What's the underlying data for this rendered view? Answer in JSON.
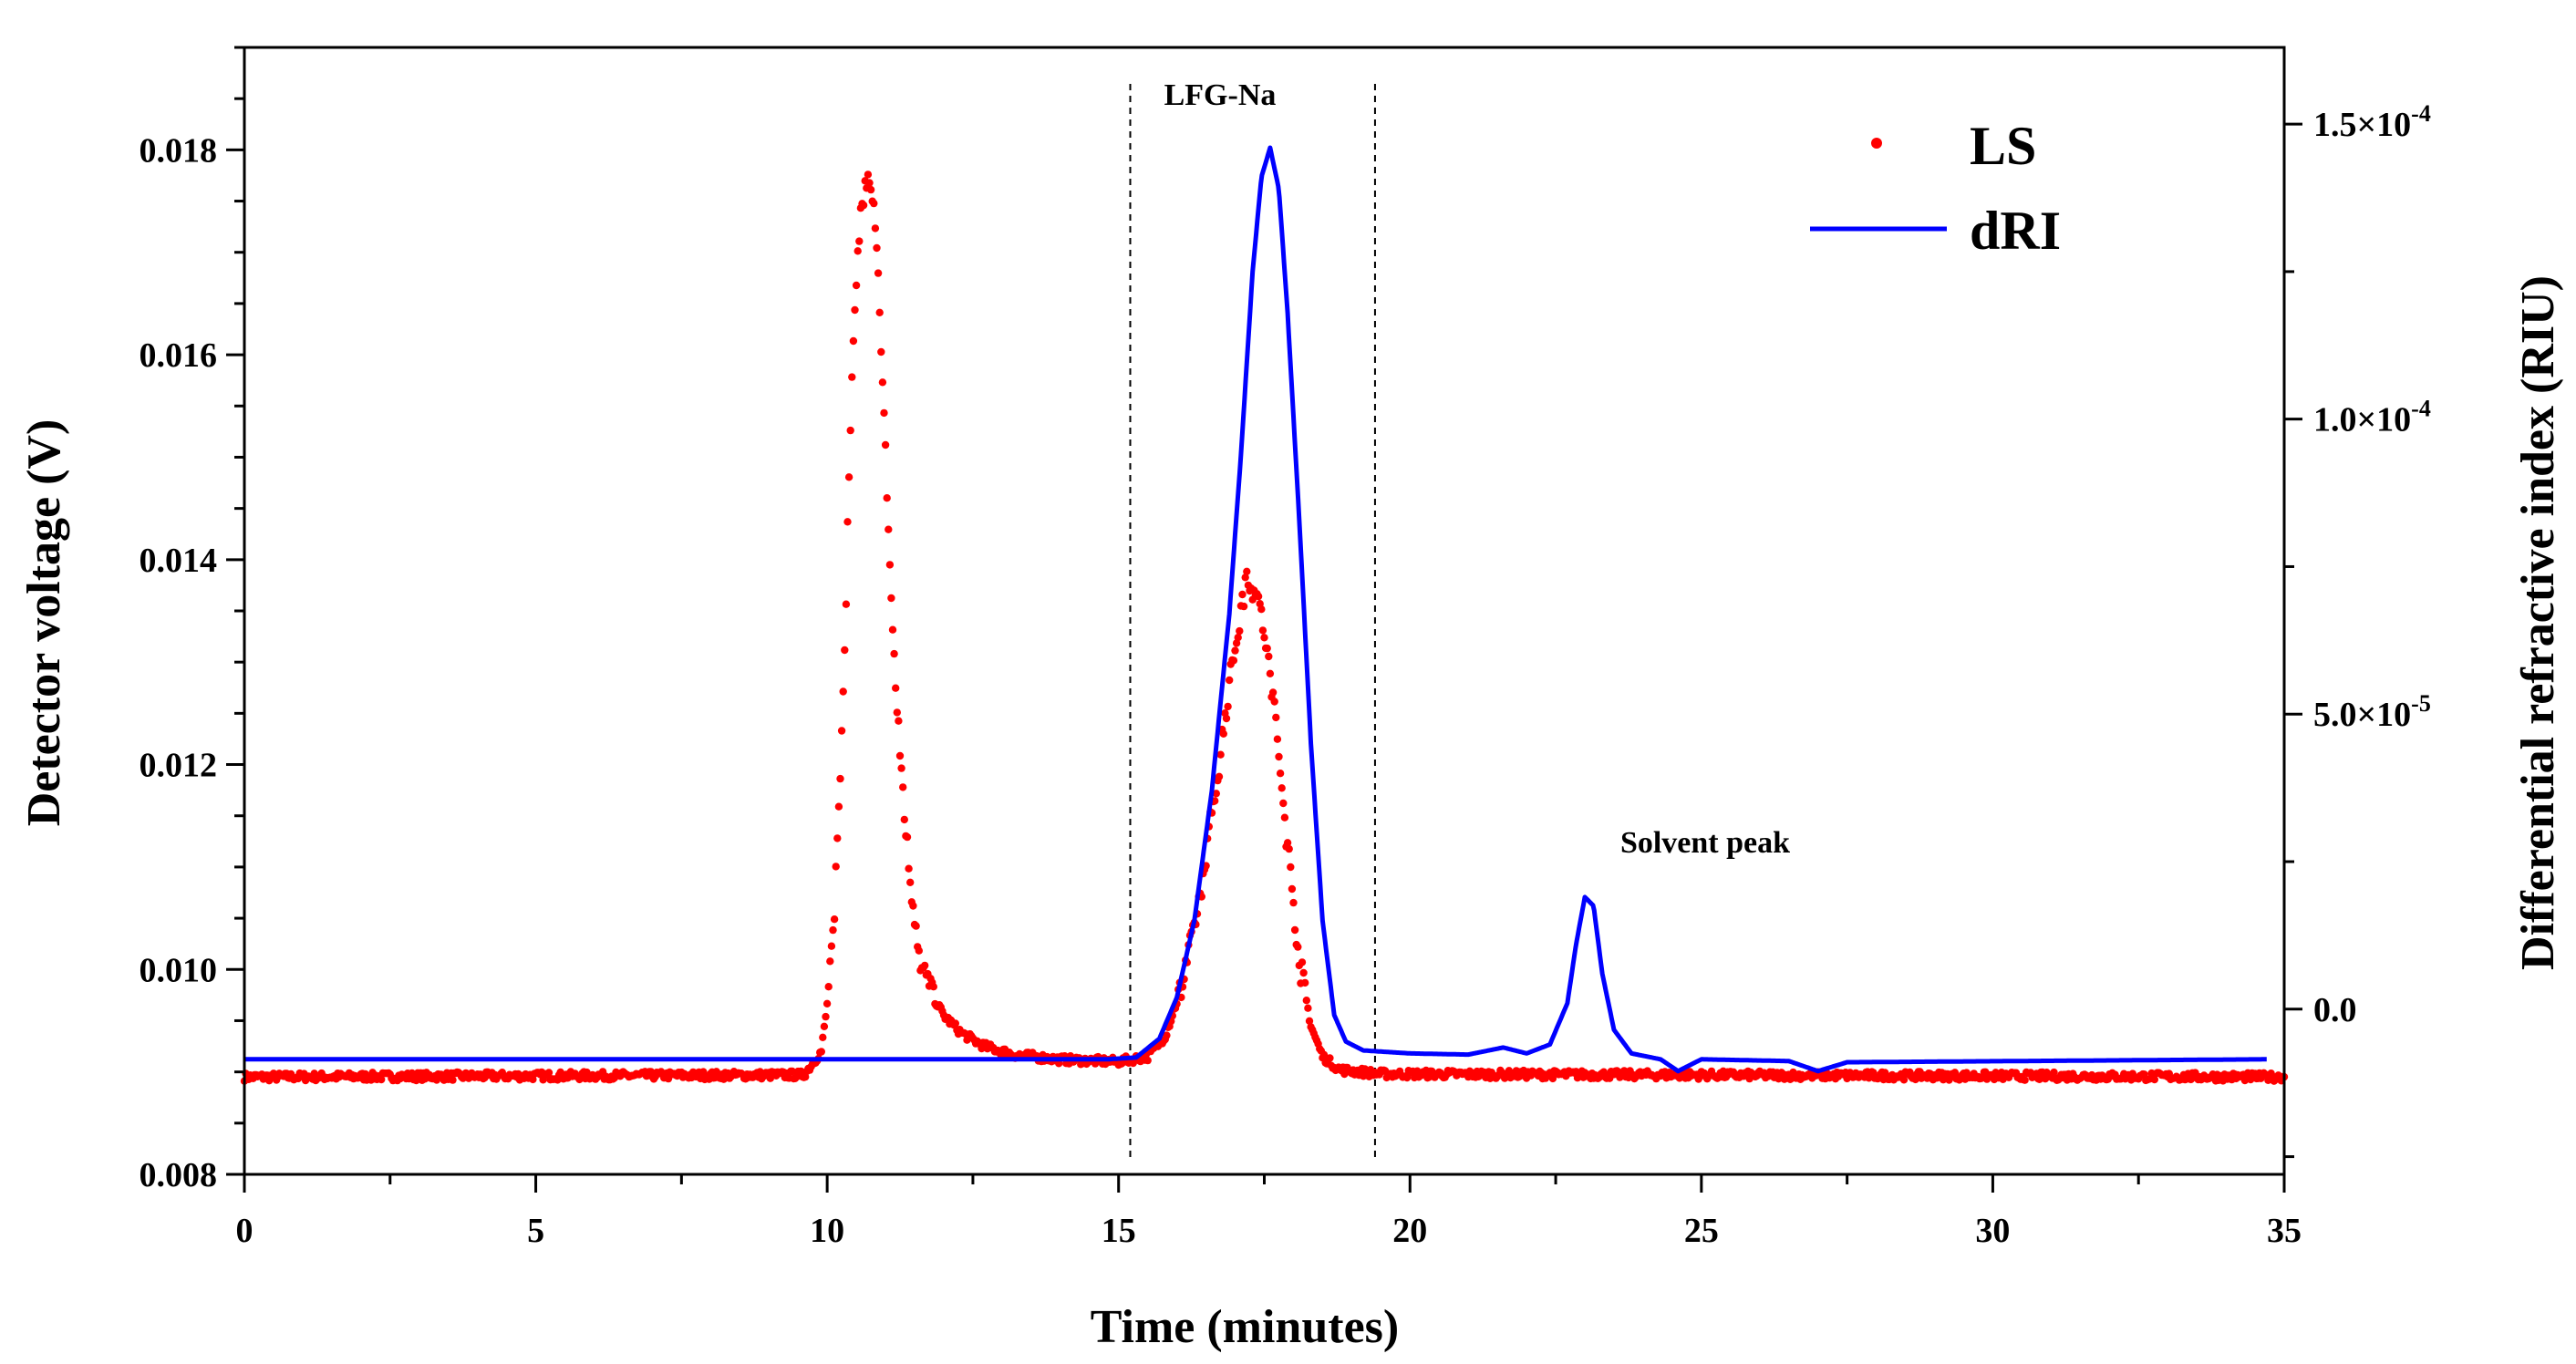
{
  "chart_data": {
    "type": "line",
    "xlabel": "Time (minutes)",
    "ylabel": "Detector voltage (V)",
    "y2label": "Differential refractive index (RIU)",
    "xlim": [
      0,
      35
    ],
    "ylim": [
      0.008,
      0.019
    ],
    "y2lim": [
      -2.8e-05,
      0.000163
    ],
    "x_ticks": [
      0,
      5,
      10,
      15,
      20,
      25,
      30,
      35
    ],
    "y_ticks": [
      0.008,
      0.01,
      0.012,
      0.014,
      0.016,
      0.018
    ],
    "y_tick_labels": [
      "0.008",
      "0.010",
      "0.012",
      "0.014",
      "0.016",
      "0.018"
    ],
    "y2_ticks": [
      {
        "value": 0.0,
        "label": "0.0"
      },
      {
        "value": 5e-05,
        "label": "5.0×10",
        "exp": "-5"
      },
      {
        "value": 0.0001,
        "label": "1.0×10",
        "exp": "-4"
      },
      {
        "value": 0.00015,
        "label": "1.5×10",
        "exp": "-4"
      }
    ],
    "annotations": [
      {
        "text": "LFG-Na",
        "x": 17.3,
        "y": 0.0185
      },
      {
        "text": "Solvent peak",
        "x": 23.1,
        "y": 0.0112
      },
      {
        "type": "vline",
        "x": 15.2
      },
      {
        "type": "vline",
        "x": 19.4
      }
    ],
    "legend": {
      "position": "top-right",
      "entries": [
        "LS",
        "dRI"
      ]
    },
    "series": [
      {
        "name": "LS",
        "axis": "left",
        "style": "scatter",
        "color": "#ff0000",
        "x_range": [
          0,
          35
        ],
        "points": [
          [
            0,
            0.00895
          ],
          [
            9.6,
            0.00897
          ],
          [
            9.9,
            0.0092
          ],
          [
            10.0,
            0.00965
          ],
          [
            10.1,
            0.0103
          ],
          [
            10.2,
            0.0116
          ],
          [
            10.3,
            0.0132
          ],
          [
            10.4,
            0.0153
          ],
          [
            10.5,
            0.0168
          ],
          [
            10.6,
            0.0175
          ],
          [
            10.7,
            0.01765
          ],
          [
            10.8,
            0.0174
          ],
          [
            10.9,
            0.0165
          ],
          [
            11.0,
            0.015
          ],
          [
            11.1,
            0.0136
          ],
          [
            11.2,
            0.0125
          ],
          [
            11.4,
            0.011
          ],
          [
            11.6,
            0.0101
          ],
          [
            11.8,
            0.00975
          ],
          [
            12.0,
            0.00955
          ],
          [
            12.3,
            0.00938
          ],
          [
            12.7,
            0.00925
          ],
          [
            13.2,
            0.00917
          ],
          [
            14.0,
            0.00912
          ],
          [
            15.0,
            0.0091
          ],
          [
            15.5,
            0.00915
          ],
          [
            15.8,
            0.00935
          ],
          [
            16.1,
            0.00985
          ],
          [
            16.4,
            0.0107
          ],
          [
            16.7,
            0.0119
          ],
          [
            16.9,
            0.0128
          ],
          [
            17.1,
            0.0135
          ],
          [
            17.2,
            0.01385
          ],
          [
            17.35,
            0.0137
          ],
          [
            17.5,
            0.0133
          ],
          [
            17.7,
            0.0124
          ],
          [
            17.9,
            0.0112
          ],
          [
            18.1,
            0.0101
          ],
          [
            18.3,
            0.00945
          ],
          [
            18.5,
            0.00915
          ],
          [
            18.8,
            0.00902
          ],
          [
            19.5,
            0.00898
          ],
          [
            35,
            0.00895
          ]
        ]
      },
      {
        "name": "dRI",
        "axis": "right",
        "style": "line",
        "color": "#0000ff",
        "x_range": [
          0,
          34.7
        ],
        "points": [
          [
            0,
            -8.5e-06
          ],
          [
            14.8,
            -8.5e-06
          ],
          [
            15.3,
            -8.2e-06
          ],
          [
            15.7,
            -5e-06
          ],
          [
            16.0,
            2e-06
          ],
          [
            16.3,
            1.5e-05
          ],
          [
            16.6,
            3.7e-05
          ],
          [
            16.9,
            6.7e-05
          ],
          [
            17.1,
            9.4e-05
          ],
          [
            17.3,
            0.000125
          ],
          [
            17.45,
            0.000141
          ],
          [
            17.6,
            0.000146
          ],
          [
            17.75,
            0.000139
          ],
          [
            17.9,
            0.000118
          ],
          [
            18.1,
            8.3e-05
          ],
          [
            18.3,
            4.5e-05
          ],
          [
            18.5,
            1.5e-05
          ],
          [
            18.7,
            -1e-06
          ],
          [
            18.9,
            -5.5e-06
          ],
          [
            19.2,
            -7e-06
          ],
          [
            20.0,
            -7.5e-06
          ],
          [
            21.0,
            -7.7e-06
          ],
          [
            21.6,
            -6.5e-06
          ],
          [
            22.0,
            -7.5e-06
          ],
          [
            22.4,
            -6e-06
          ],
          [
            22.7,
            1e-06
          ],
          [
            22.85,
            1.1e-05
          ],
          [
            23.0,
            1.9e-05
          ],
          [
            23.15,
            1.75e-05
          ],
          [
            23.3,
            6e-06
          ],
          [
            23.5,
            -3.5e-06
          ],
          [
            23.8,
            -7.5e-06
          ],
          [
            24.3,
            -8.5e-06
          ],
          [
            24.6,
            -1.05e-05
          ],
          [
            25.0,
            -8.5e-06
          ],
          [
            26.5,
            -8.8e-06
          ],
          [
            27.0,
            -1.05e-05
          ],
          [
            27.5,
            -9e-06
          ],
          [
            34.7,
            -8.5e-06
          ]
        ]
      }
    ]
  }
}
